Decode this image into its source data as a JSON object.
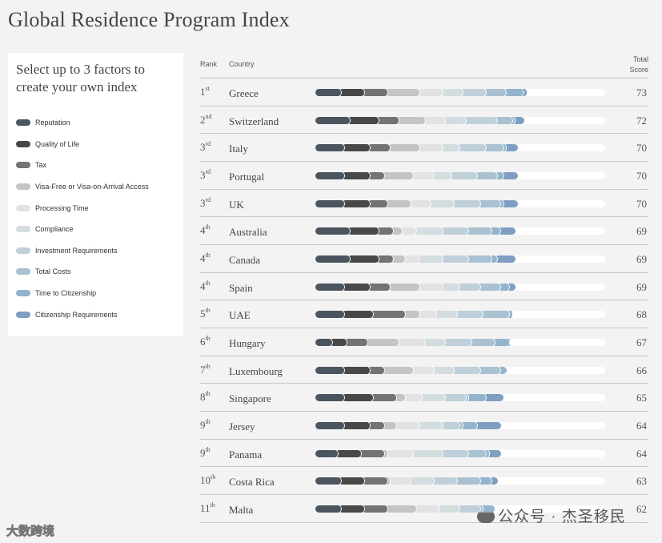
{
  "page": {
    "title": "Global Residence Program Index",
    "legend_heading": "Select up to 3 factors to create your own index",
    "headers": {
      "rank": "Rank",
      "country": "Country",
      "total_line1": "Total",
      "total_line2": "Score"
    },
    "watermark": "公众号 · 杰圣移民",
    "corner_mark": "大数跨境"
  },
  "chart_data": {
    "type": "bar",
    "orientation": "horizontal-stacked",
    "title": "Global Residence Program Index",
    "score_max": 100,
    "factors": [
      {
        "name": "Reputation",
        "color": "#4a5560"
      },
      {
        "name": "Quality of Life",
        "color": "#484848"
      },
      {
        "name": "Tax",
        "color": "#737373"
      },
      {
        "name": "Visa-Free or Visa-on-Arrival Access",
        "color": "#c4c4c4"
      },
      {
        "name": "Processing Time",
        "color": "#e2e2e2"
      },
      {
        "name": "Compliance",
        "color": "#d3dcdf"
      },
      {
        "name": "Investment Requirements",
        "color": "#bfd0da"
      },
      {
        "name": "Total Costs",
        "color": "#a9c1d1"
      },
      {
        "name": "Time to Citizenship",
        "color": "#93b4cd"
      },
      {
        "name": "Citizenship Requirements",
        "color": "#7e9fc2"
      }
    ],
    "rows": [
      {
        "rank": "1",
        "suffix": "st",
        "country": "Greece",
        "score": 73,
        "values": [
          8,
          8,
          8,
          11,
          8,
          7,
          8,
          7,
          6,
          2
        ]
      },
      {
        "rank": "2",
        "suffix": "nd",
        "country": "Switzerland",
        "score": 72,
        "values": [
          11,
          10,
          7,
          9,
          7,
          7,
          11,
          5,
          1,
          4
        ]
      },
      {
        "rank": "3",
        "suffix": "rd",
        "country": "Italy",
        "score": 70,
        "values": [
          9,
          9,
          7,
          10,
          8,
          6,
          9,
          6,
          1,
          5
        ]
      },
      {
        "rank": "3",
        "suffix": "rd",
        "country": "Portugal",
        "score": 70,
        "values": [
          9,
          9,
          5,
          10,
          7,
          6,
          9,
          7,
          2,
          6
        ]
      },
      {
        "rank": "3",
        "suffix": "rd",
        "country": "UK",
        "score": 70,
        "values": [
          9,
          9,
          6,
          8,
          7,
          8,
          9,
          7,
          1,
          6
        ]
      },
      {
        "rank": "4",
        "suffix": "th",
        "country": "Australia",
        "score": 69,
        "values": [
          11,
          10,
          5,
          3,
          5,
          9,
          9,
          8,
          3,
          6
        ]
      },
      {
        "rank": "4",
        "suffix": "th",
        "country": "Canada",
        "score": 69,
        "values": [
          11,
          10,
          5,
          4,
          5,
          8,
          9,
          8,
          2,
          7
        ]
      },
      {
        "rank": "4",
        "suffix": "th",
        "country": "Spain",
        "score": 69,
        "values": [
          9,
          9,
          7,
          10,
          8,
          6,
          7,
          7,
          3,
          3
        ]
      },
      {
        "rank": "5",
        "suffix": "th",
        "country": "UAE",
        "score": 68,
        "values": [
          9,
          10,
          11,
          5,
          6,
          7,
          9,
          9,
          1,
          1
        ]
      },
      {
        "rank": "6",
        "suffix": "th",
        "country": "Hungary",
        "score": 67,
        "values": [
          5,
          5,
          7,
          11,
          9,
          7,
          9,
          8,
          5,
          1
        ]
      },
      {
        "rank": "7",
        "suffix": "th",
        "country": "Luxembourg",
        "score": 66,
        "values": [
          9,
          9,
          5,
          10,
          7,
          7,
          9,
          7,
          3,
          0
        ]
      },
      {
        "rank": "8",
        "suffix": "th",
        "country": "Singapore",
        "score": 65,
        "values": [
          9,
          10,
          8,
          3,
          6,
          8,
          7,
          1,
          6,
          7
        ]
      },
      {
        "rank": "9",
        "suffix": "th",
        "country": "Jersey",
        "score": 64,
        "values": [
          9,
          9,
          5,
          4,
          8,
          8,
          6,
          1,
          5,
          9
        ]
      },
      {
        "rank": "9",
        "suffix": "th",
        "country": "Panama",
        "score": 64,
        "values": [
          7,
          8,
          8,
          1,
          9,
          10,
          9,
          6,
          1,
          5
        ]
      },
      {
        "rank": "10",
        "suffix": "th",
        "country": "Costa Rica",
        "score": 63,
        "values": [
          8,
          8,
          8,
          1,
          7,
          8,
          8,
          8,
          4,
          3
        ]
      },
      {
        "rank": "11",
        "suffix": "th",
        "country": "Malta",
        "score": 62,
        "values": [
          8,
          8,
          8,
          10,
          8,
          7,
          7,
          1,
          5,
          0
        ]
      }
    ]
  }
}
